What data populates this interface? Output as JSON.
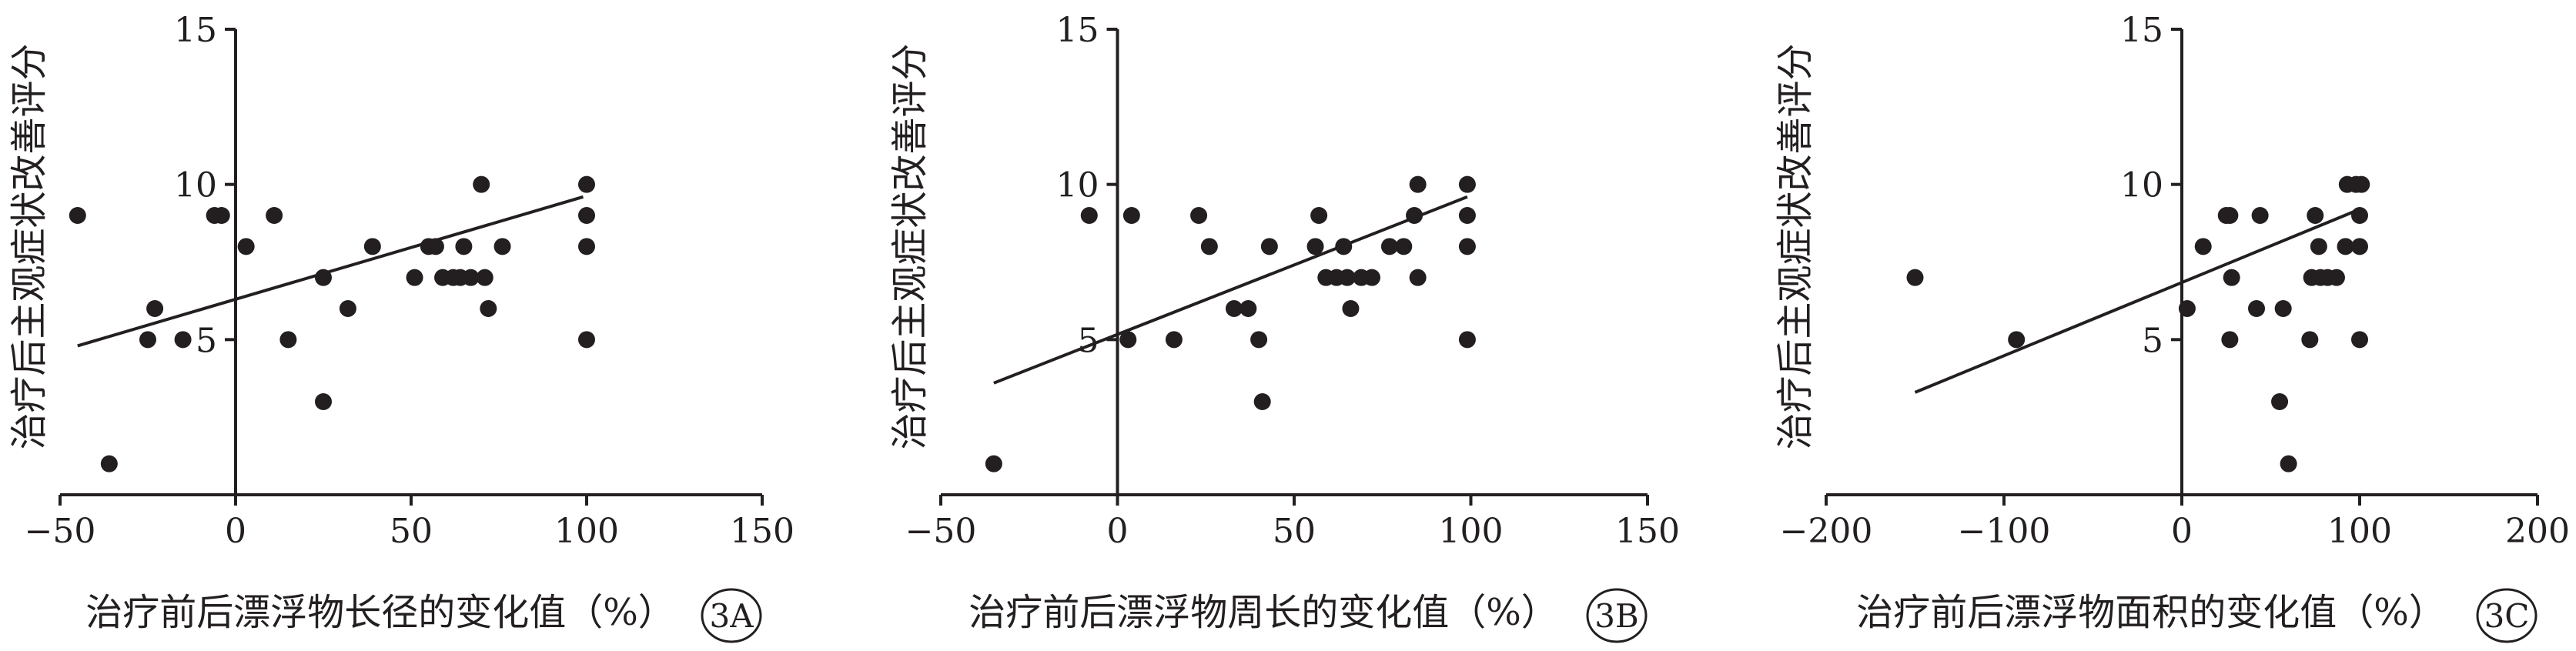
{
  "chart_data": [
    {
      "type": "scatter",
      "panel_label": "3A",
      "xlabel": "治疗前后漂浮物长径的变化值（%）",
      "ylabel": "治疗后主观症状改善评分",
      "xlim": [
        -50,
        150
      ],
      "ylim": [
        0,
        15
      ],
      "xticks": [
        -50,
        0,
        50,
        100,
        150
      ],
      "yticks": [
        5,
        10,
        15
      ],
      "grid": false,
      "points": [
        [
          -45,
          9
        ],
        [
          -36,
          1
        ],
        [
          -25,
          5
        ],
        [
          -23,
          6
        ],
        [
          -15,
          5
        ],
        [
          -6,
          9
        ],
        [
          -4,
          9
        ],
        [
          3,
          8
        ],
        [
          11,
          9
        ],
        [
          15,
          5
        ],
        [
          25,
          7
        ],
        [
          25,
          3
        ],
        [
          32,
          6
        ],
        [
          39,
          8
        ],
        [
          51,
          7
        ],
        [
          55,
          8
        ],
        [
          57,
          8
        ],
        [
          59,
          7
        ],
        [
          62,
          7
        ],
        [
          64,
          7
        ],
        [
          65,
          8
        ],
        [
          67,
          7
        ],
        [
          70,
          10
        ],
        [
          71,
          7
        ],
        [
          72,
          6
        ],
        [
          76,
          8
        ],
        [
          100,
          10
        ],
        [
          100,
          9
        ],
        [
          100,
          8
        ],
        [
          100,
          5
        ]
      ],
      "trendline": {
        "x": [
          -45,
          99
        ],
        "y": [
          4.8,
          9.6
        ]
      }
    },
    {
      "type": "scatter",
      "panel_label": "3B",
      "xlabel": "治疗前后漂浮物周长的变化值（%）",
      "ylabel": "治疗后主观症状改善评分",
      "xlim": [
        -50,
        150
      ],
      "ylim": [
        0,
        15
      ],
      "xticks": [
        -50,
        0,
        50,
        100,
        150
      ],
      "yticks": [
        5,
        10,
        15
      ],
      "grid": false,
      "points": [
        [
          -35,
          1
        ],
        [
          -8,
          9
        ],
        [
          3,
          5
        ],
        [
          4,
          9
        ],
        [
          16,
          5
        ],
        [
          23,
          9
        ],
        [
          26,
          8
        ],
        [
          33,
          6
        ],
        [
          37,
          6
        ],
        [
          40,
          5
        ],
        [
          41,
          3
        ],
        [
          43,
          8
        ],
        [
          56,
          8
        ],
        [
          57,
          9
        ],
        [
          59,
          7
        ],
        [
          62,
          7
        ],
        [
          64,
          8
        ],
        [
          65,
          7
        ],
        [
          66,
          6
        ],
        [
          69,
          7
        ],
        [
          72,
          7
        ],
        [
          77,
          8
        ],
        [
          81,
          8
        ],
        [
          84,
          9
        ],
        [
          85,
          10
        ],
        [
          85,
          7
        ],
        [
          99,
          10
        ],
        [
          99,
          9
        ],
        [
          99,
          8
        ],
        [
          99,
          5
        ]
      ],
      "trendline": {
        "x": [
          -35,
          99
        ],
        "y": [
          3.6,
          9.6
        ]
      }
    },
    {
      "type": "scatter",
      "panel_label": "3C",
      "xlabel": "治疗前后漂浮物面积的变化值（%）",
      "ylabel": "治疗后主观症状改善评分",
      "xlim": [
        -200,
        200
      ],
      "ylim": [
        0,
        15
      ],
      "xticks": [
        -200,
        -100,
        0,
        100,
        200
      ],
      "yticks": [
        5,
        10,
        15
      ],
      "grid": false,
      "points": [
        [
          -150,
          7
        ],
        [
          -93,
          5
        ],
        [
          3,
          6
        ],
        [
          12,
          8
        ],
        [
          25,
          9
        ],
        [
          27,
          9
        ],
        [
          28,
          7
        ],
        [
          27,
          5
        ],
        [
          42,
          6
        ],
        [
          44,
          9
        ],
        [
          55,
          3
        ],
        [
          57,
          6
        ],
        [
          60,
          1
        ],
        [
          72,
          5
        ],
        [
          73,
          7
        ],
        [
          75,
          9
        ],
        [
          77,
          8
        ],
        [
          78,
          7
        ],
        [
          82,
          7
        ],
        [
          87,
          7
        ],
        [
          92,
          8
        ],
        [
          93,
          10
        ],
        [
          98,
          10
        ],
        [
          100,
          9
        ],
        [
          100,
          8
        ],
        [
          100,
          5
        ],
        [
          101,
          10
        ]
      ],
      "trendline": {
        "x": [
          -150,
          100
        ],
        "y": [
          3.3,
          9.2
        ]
      }
    }
  ]
}
